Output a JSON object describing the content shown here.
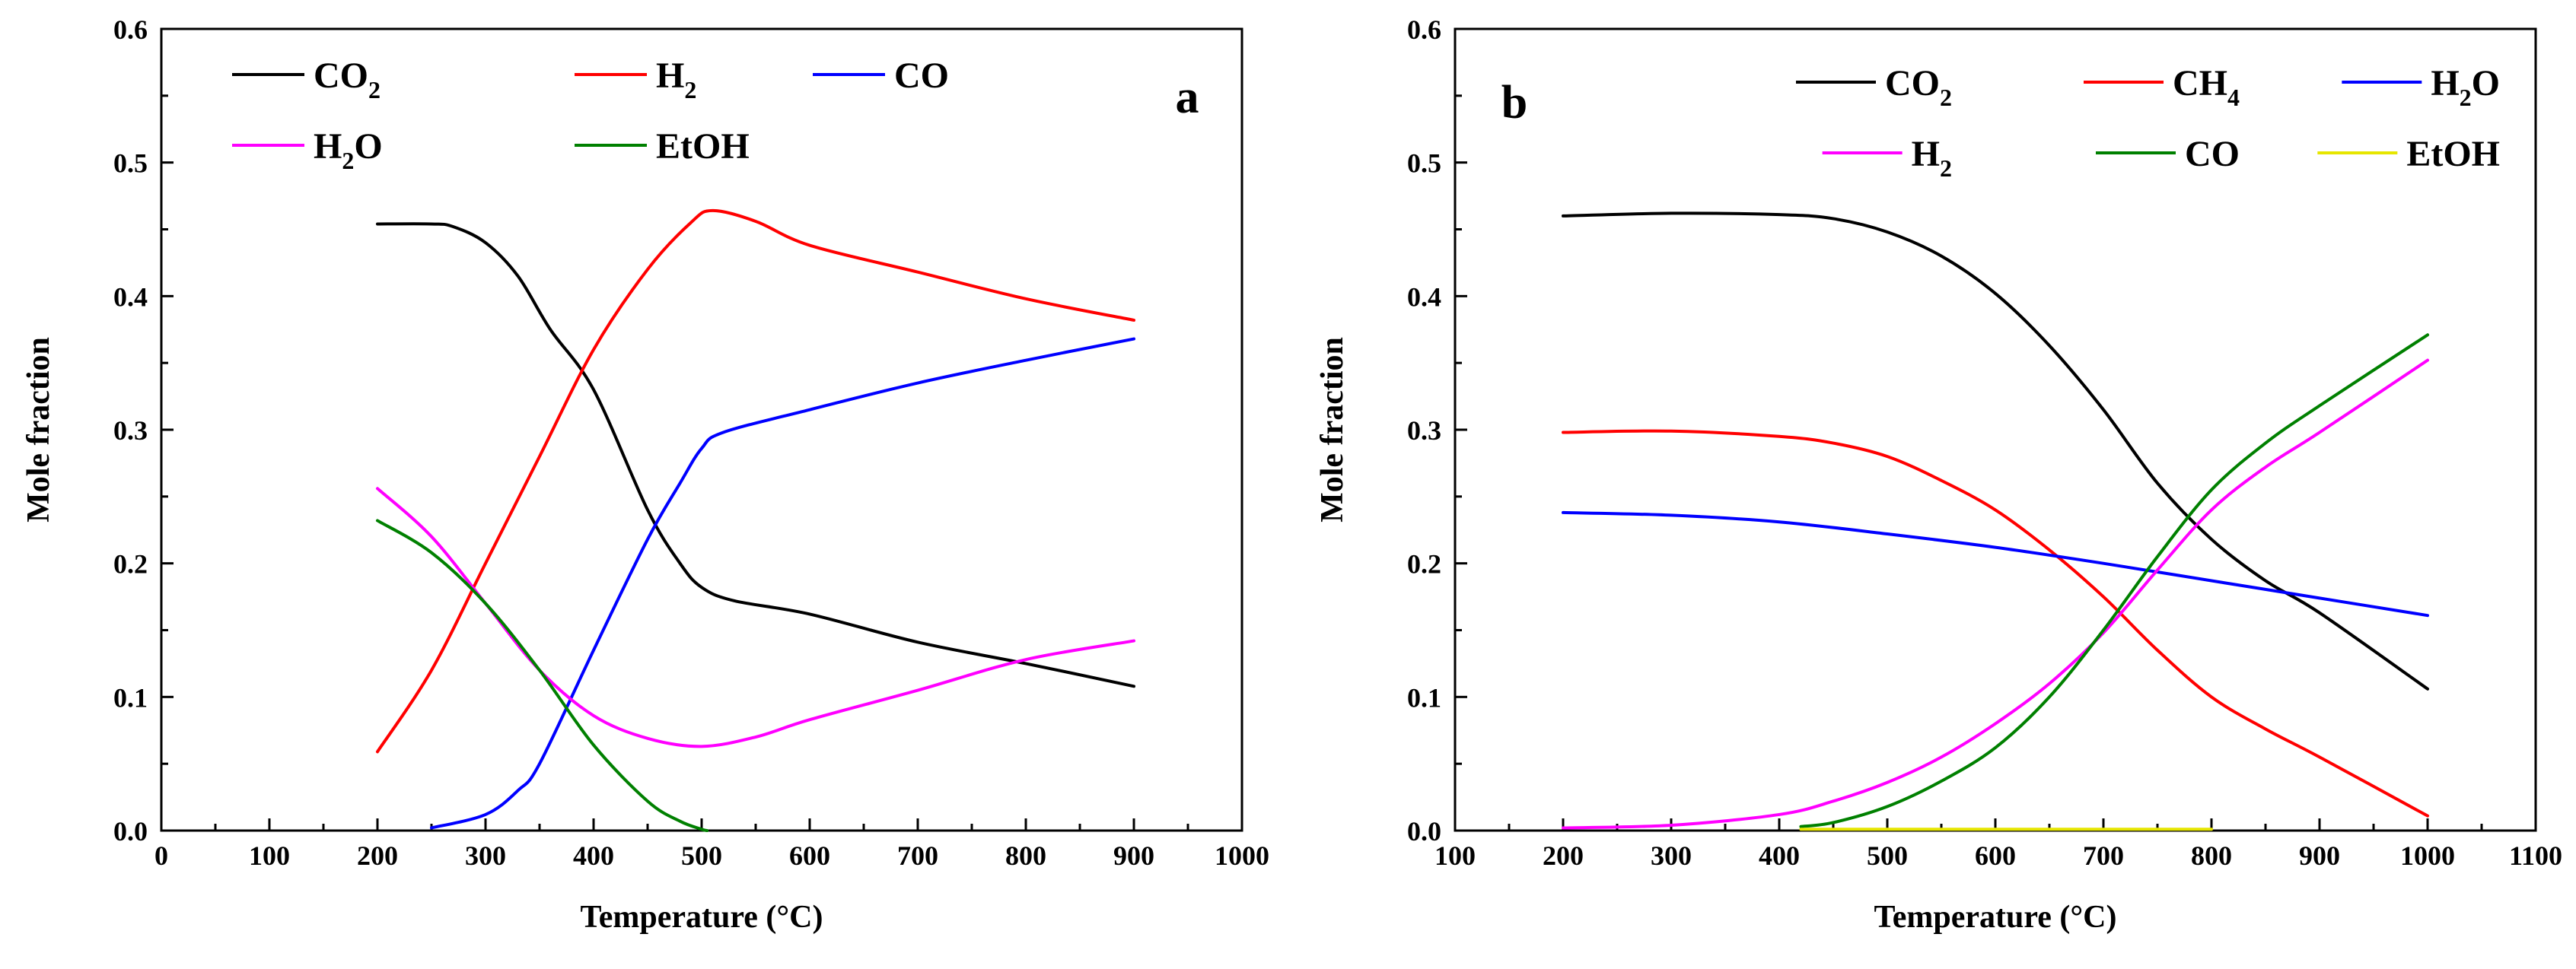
{
  "chart_data": [
    {
      "type": "line",
      "panel_label": "a",
      "xlabel": "Temperature (°C)",
      "ylabel": "Mole fraction",
      "xlim": [
        0,
        1000
      ],
      "ylim": [
        0,
        0.6
      ],
      "xticks": [
        0,
        100,
        200,
        300,
        400,
        500,
        600,
        700,
        800,
        900,
        1000
      ],
      "yticks": [
        0.0,
        0.1,
        0.2,
        0.3,
        0.4,
        0.5,
        0.6
      ],
      "legend_position": "top-left",
      "series": [
        {
          "name": "CO2",
          "label_main": "CO",
          "label_sub": "2",
          "color": "#000000",
          "x": [
            200,
            250,
            270,
            300,
            330,
            360,
            400,
            450,
            480,
            500,
            530,
            600,
            700,
            800,
            900
          ],
          "y": [
            0.454,
            0.454,
            0.452,
            0.44,
            0.415,
            0.375,
            0.33,
            0.24,
            0.2,
            0.182,
            0.172,
            0.162,
            0.141,
            0.125,
            0.108
          ]
        },
        {
          "name": "H2",
          "label_main": "H",
          "label_sub": "2",
          "color": "#ff0000",
          "x": [
            200,
            250,
            300,
            350,
            400,
            450,
            490,
            510,
            550,
            600,
            700,
            800,
            900
          ],
          "y": [
            0.059,
            0.12,
            0.2,
            0.28,
            0.36,
            0.42,
            0.455,
            0.464,
            0.456,
            0.438,
            0.418,
            0.398,
            0.382
          ]
        },
        {
          "name": "CO",
          "label_main": "CO",
          "label_sub": "",
          "color": "#0000ff",
          "x": [
            250,
            300,
            330,
            350,
            400,
            450,
            480,
            500,
            520,
            600,
            700,
            800,
            900
          ],
          "y": [
            0.002,
            0.012,
            0.03,
            0.05,
            0.135,
            0.218,
            0.26,
            0.286,
            0.298,
            0.315,
            0.335,
            0.352,
            0.368
          ]
        },
        {
          "name": "H2O",
          "label_main": "H",
          "label_sub": "2",
          "label_tail": "O",
          "color": "#ff00ff",
          "x": [
            200,
            250,
            300,
            350,
            400,
            450,
            500,
            550,
            600,
            700,
            800,
            900
          ],
          "y": [
            0.256,
            0.22,
            0.17,
            0.12,
            0.086,
            0.069,
            0.063,
            0.07,
            0.083,
            0.105,
            0.128,
            0.142
          ]
        },
        {
          "name": "EtOH",
          "label_main": "EtOH",
          "label_sub": "",
          "color": "#008000",
          "x": [
            200,
            250,
            300,
            350,
            400,
            450,
            480,
            500,
            505
          ],
          "y": [
            0.232,
            0.208,
            0.17,
            0.12,
            0.064,
            0.022,
            0.007,
            0.001,
            0
          ]
        }
      ]
    },
    {
      "type": "line",
      "panel_label": "b",
      "xlabel": "Temperature (°C)",
      "ylabel": "Mole fraction",
      "xlim": [
        100,
        1100
      ],
      "ylim": [
        0,
        0.6
      ],
      "xticks": [
        100,
        200,
        300,
        400,
        500,
        600,
        700,
        800,
        900,
        1000,
        1100
      ],
      "yticks": [
        0.0,
        0.1,
        0.2,
        0.3,
        0.4,
        0.5,
        0.6
      ],
      "legend_position": "top-right",
      "series": [
        {
          "name": "CO2",
          "label_main": "CO",
          "label_sub": "2",
          "color": "#000000",
          "x": [
            200,
            300,
            400,
            450,
            500,
            550,
            600,
            650,
            700,
            750,
            800,
            850,
            900,
            1000
          ],
          "y": [
            0.46,
            0.462,
            0.461,
            0.458,
            0.448,
            0.43,
            0.402,
            0.363,
            0.315,
            0.26,
            0.218,
            0.187,
            0.163,
            0.106
          ]
        },
        {
          "name": "CH4",
          "label_main": "CH",
          "label_sub": "4",
          "color": "#ff0000",
          "x": [
            200,
            300,
            400,
            450,
            500,
            550,
            600,
            650,
            700,
            750,
            800,
            850,
            900,
            1000
          ],
          "y": [
            0.298,
            0.299,
            0.295,
            0.29,
            0.28,
            0.262,
            0.24,
            0.21,
            0.175,
            0.135,
            0.1,
            0.076,
            0.055,
            0.011
          ]
        },
        {
          "name": "H2O",
          "label_main": "H",
          "label_sub": "2",
          "label_tail": "O",
          "color": "#0000ff",
          "x": [
            200,
            300,
            400,
            500,
            600,
            700,
            800,
            900,
            1000
          ],
          "y": [
            0.238,
            0.236,
            0.231,
            0.222,
            0.212,
            0.2,
            0.187,
            0.174,
            0.161
          ]
        },
        {
          "name": "H2",
          "label_main": "H",
          "label_sub": "2",
          "color": "#ff00ff",
          "x": [
            200,
            300,
            400,
            450,
            500,
            550,
            600,
            650,
            700,
            750,
            800,
            850,
            900,
            1000
          ],
          "y": [
            0.002,
            0.004,
            0.012,
            0.022,
            0.036,
            0.055,
            0.08,
            0.11,
            0.148,
            0.195,
            0.24,
            0.272,
            0.298,
            0.352
          ]
        },
        {
          "name": "CO",
          "label_main": "CO",
          "label_sub": "",
          "color": "#008000",
          "x": [
            420,
            450,
            500,
            550,
            600,
            650,
            700,
            750,
            800,
            850,
            900,
            1000
          ],
          "y": [
            0.003,
            0.006,
            0.018,
            0.037,
            0.062,
            0.1,
            0.15,
            0.205,
            0.255,
            0.29,
            0.318,
            0.371
          ]
        },
        {
          "name": "EtOH",
          "label_main": "EtOH",
          "label_sub": "",
          "color": "#e6e600",
          "x": [
            420,
            800
          ],
          "y": [
            0.001,
            0.001
          ]
        }
      ]
    }
  ]
}
